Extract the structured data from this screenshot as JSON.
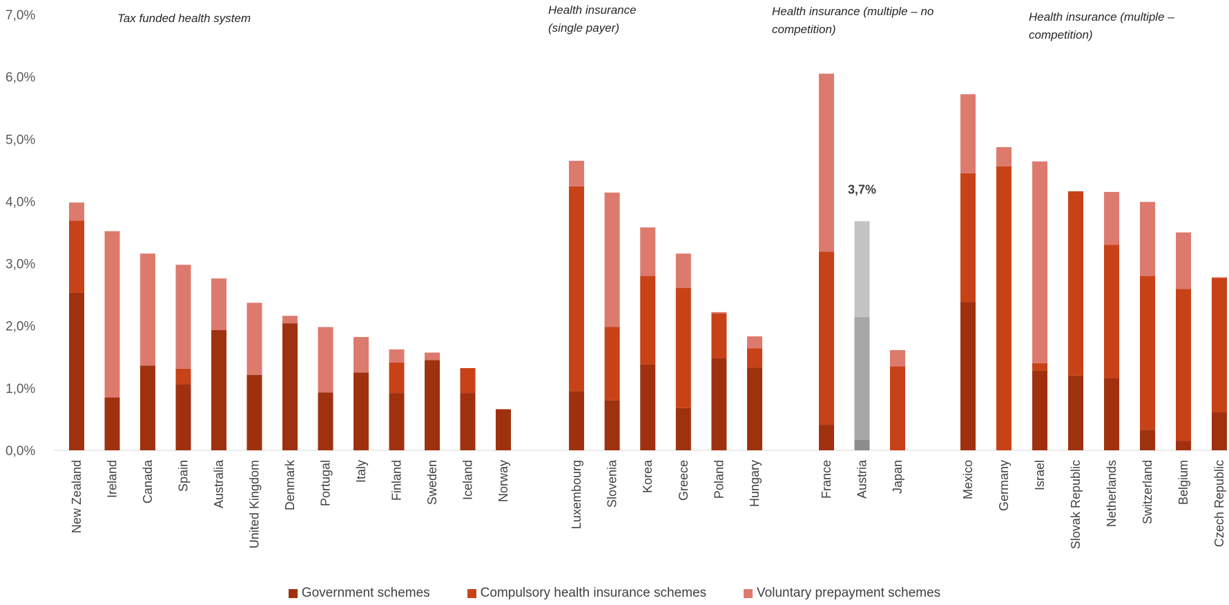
{
  "chart_data": {
    "type": "bar",
    "stacked": true,
    "ylim": [
      0,
      7
    ],
    "yticks": [
      "0,0%",
      "1,0%",
      "2,0%",
      "3,0%",
      "4,0%",
      "5,0%",
      "6,0%",
      "7,0%"
    ],
    "grid": false,
    "legend_position": "bottom",
    "series": [
      {
        "name": "Government schemes",
        "color": "#A0310F"
      },
      {
        "name": "Compulsory health insurance schemes",
        "color": "#C84218"
      },
      {
        "name": "Voluntary prepayment schemes",
        "color": "#DD7A6E"
      }
    ],
    "groups": [
      {
        "label": "Tax funded health system",
        "countries": [
          {
            "name": "New Zealand",
            "values": [
              2.53,
              1.16,
              0.29
            ]
          },
          {
            "name": "Ireland",
            "values": [
              0.85,
              0.0,
              2.67
            ]
          },
          {
            "name": "Canada",
            "values": [
              1.36,
              0.0,
              1.8
            ]
          },
          {
            "name": "Spain",
            "values": [
              1.06,
              0.25,
              1.67
            ]
          },
          {
            "name": "Australia",
            "values": [
              1.93,
              0.0,
              0.83
            ]
          },
          {
            "name": "United Kingdom",
            "values": [
              1.21,
              0.0,
              1.16
            ]
          },
          {
            "name": "Denmark",
            "values": [
              2.04,
              0.0,
              0.12
            ]
          },
          {
            "name": "Portugal",
            "values": [
              0.93,
              0.0,
              1.05
            ]
          },
          {
            "name": "Italy",
            "values": [
              1.25,
              0.0,
              0.57
            ]
          },
          {
            "name": "Finland",
            "values": [
              0.92,
              0.49,
              0.21
            ]
          },
          {
            "name": "Sweden",
            "values": [
              1.45,
              0.0,
              0.12
            ]
          },
          {
            "name": "Iceland",
            "values": [
              0.92,
              0.4,
              0.0
            ]
          },
          {
            "name": "Norway",
            "values": [
              0.66,
              0.0,
              0.0
            ]
          }
        ]
      },
      {
        "label": "Health insurance\n(single payer)",
        "countries": [
          {
            "name": "Luxembourg",
            "values": [
              0.95,
              3.29,
              0.41
            ]
          },
          {
            "name": "Slovenia",
            "values": [
              0.8,
              1.18,
              2.16
            ]
          },
          {
            "name": "Korea",
            "values": [
              1.38,
              1.42,
              0.78
            ]
          },
          {
            "name": "Greece",
            "values": [
              0.68,
              1.93,
              0.55
            ]
          },
          {
            "name": "Poland",
            "values": [
              1.48,
              0.72,
              0.02
            ]
          },
          {
            "name": "Hungary",
            "values": [
              1.33,
              0.31,
              0.19
            ]
          }
        ]
      },
      {
        "label": "Health insurance (multiple – no\ncompetition)",
        "countries": [
          {
            "name": "France",
            "values": [
              0.41,
              2.78,
              2.86
            ]
          },
          {
            "name": "Austria",
            "values": [
              0.17,
              1.97,
              1.54
            ],
            "highlight": true,
            "data_label": "3,7%",
            "highlight_colors": [
              "#8C8C8C",
              "#A6A6A6",
              "#C4C4C4"
            ]
          },
          {
            "name": "Japan",
            "values": [
              0.0,
              1.35,
              0.26
            ]
          }
        ]
      },
      {
        "label": "Health insurance (multiple –\ncompetition)",
        "countries": [
          {
            "name": "Mexico",
            "values": [
              2.38,
              2.07,
              1.27
            ]
          },
          {
            "name": "Germany",
            "values": [
              0.0,
              4.56,
              0.31
            ]
          },
          {
            "name": "Israel",
            "values": [
              1.28,
              0.12,
              3.24
            ]
          },
          {
            "name": "Slovak Republic",
            "values": [
              1.2,
              2.96,
              0.0
            ]
          },
          {
            "name": "Netherlands",
            "values": [
              1.16,
              2.14,
              0.85
            ]
          },
          {
            "name": "Switzerland",
            "values": [
              0.33,
              2.47,
              1.19
            ]
          },
          {
            "name": "Belgium",
            "values": [
              0.15,
              2.44,
              0.91
            ]
          },
          {
            "name": "Czech Republic",
            "values": [
              0.61,
              2.16,
              0.01
            ]
          }
        ]
      }
    ]
  }
}
